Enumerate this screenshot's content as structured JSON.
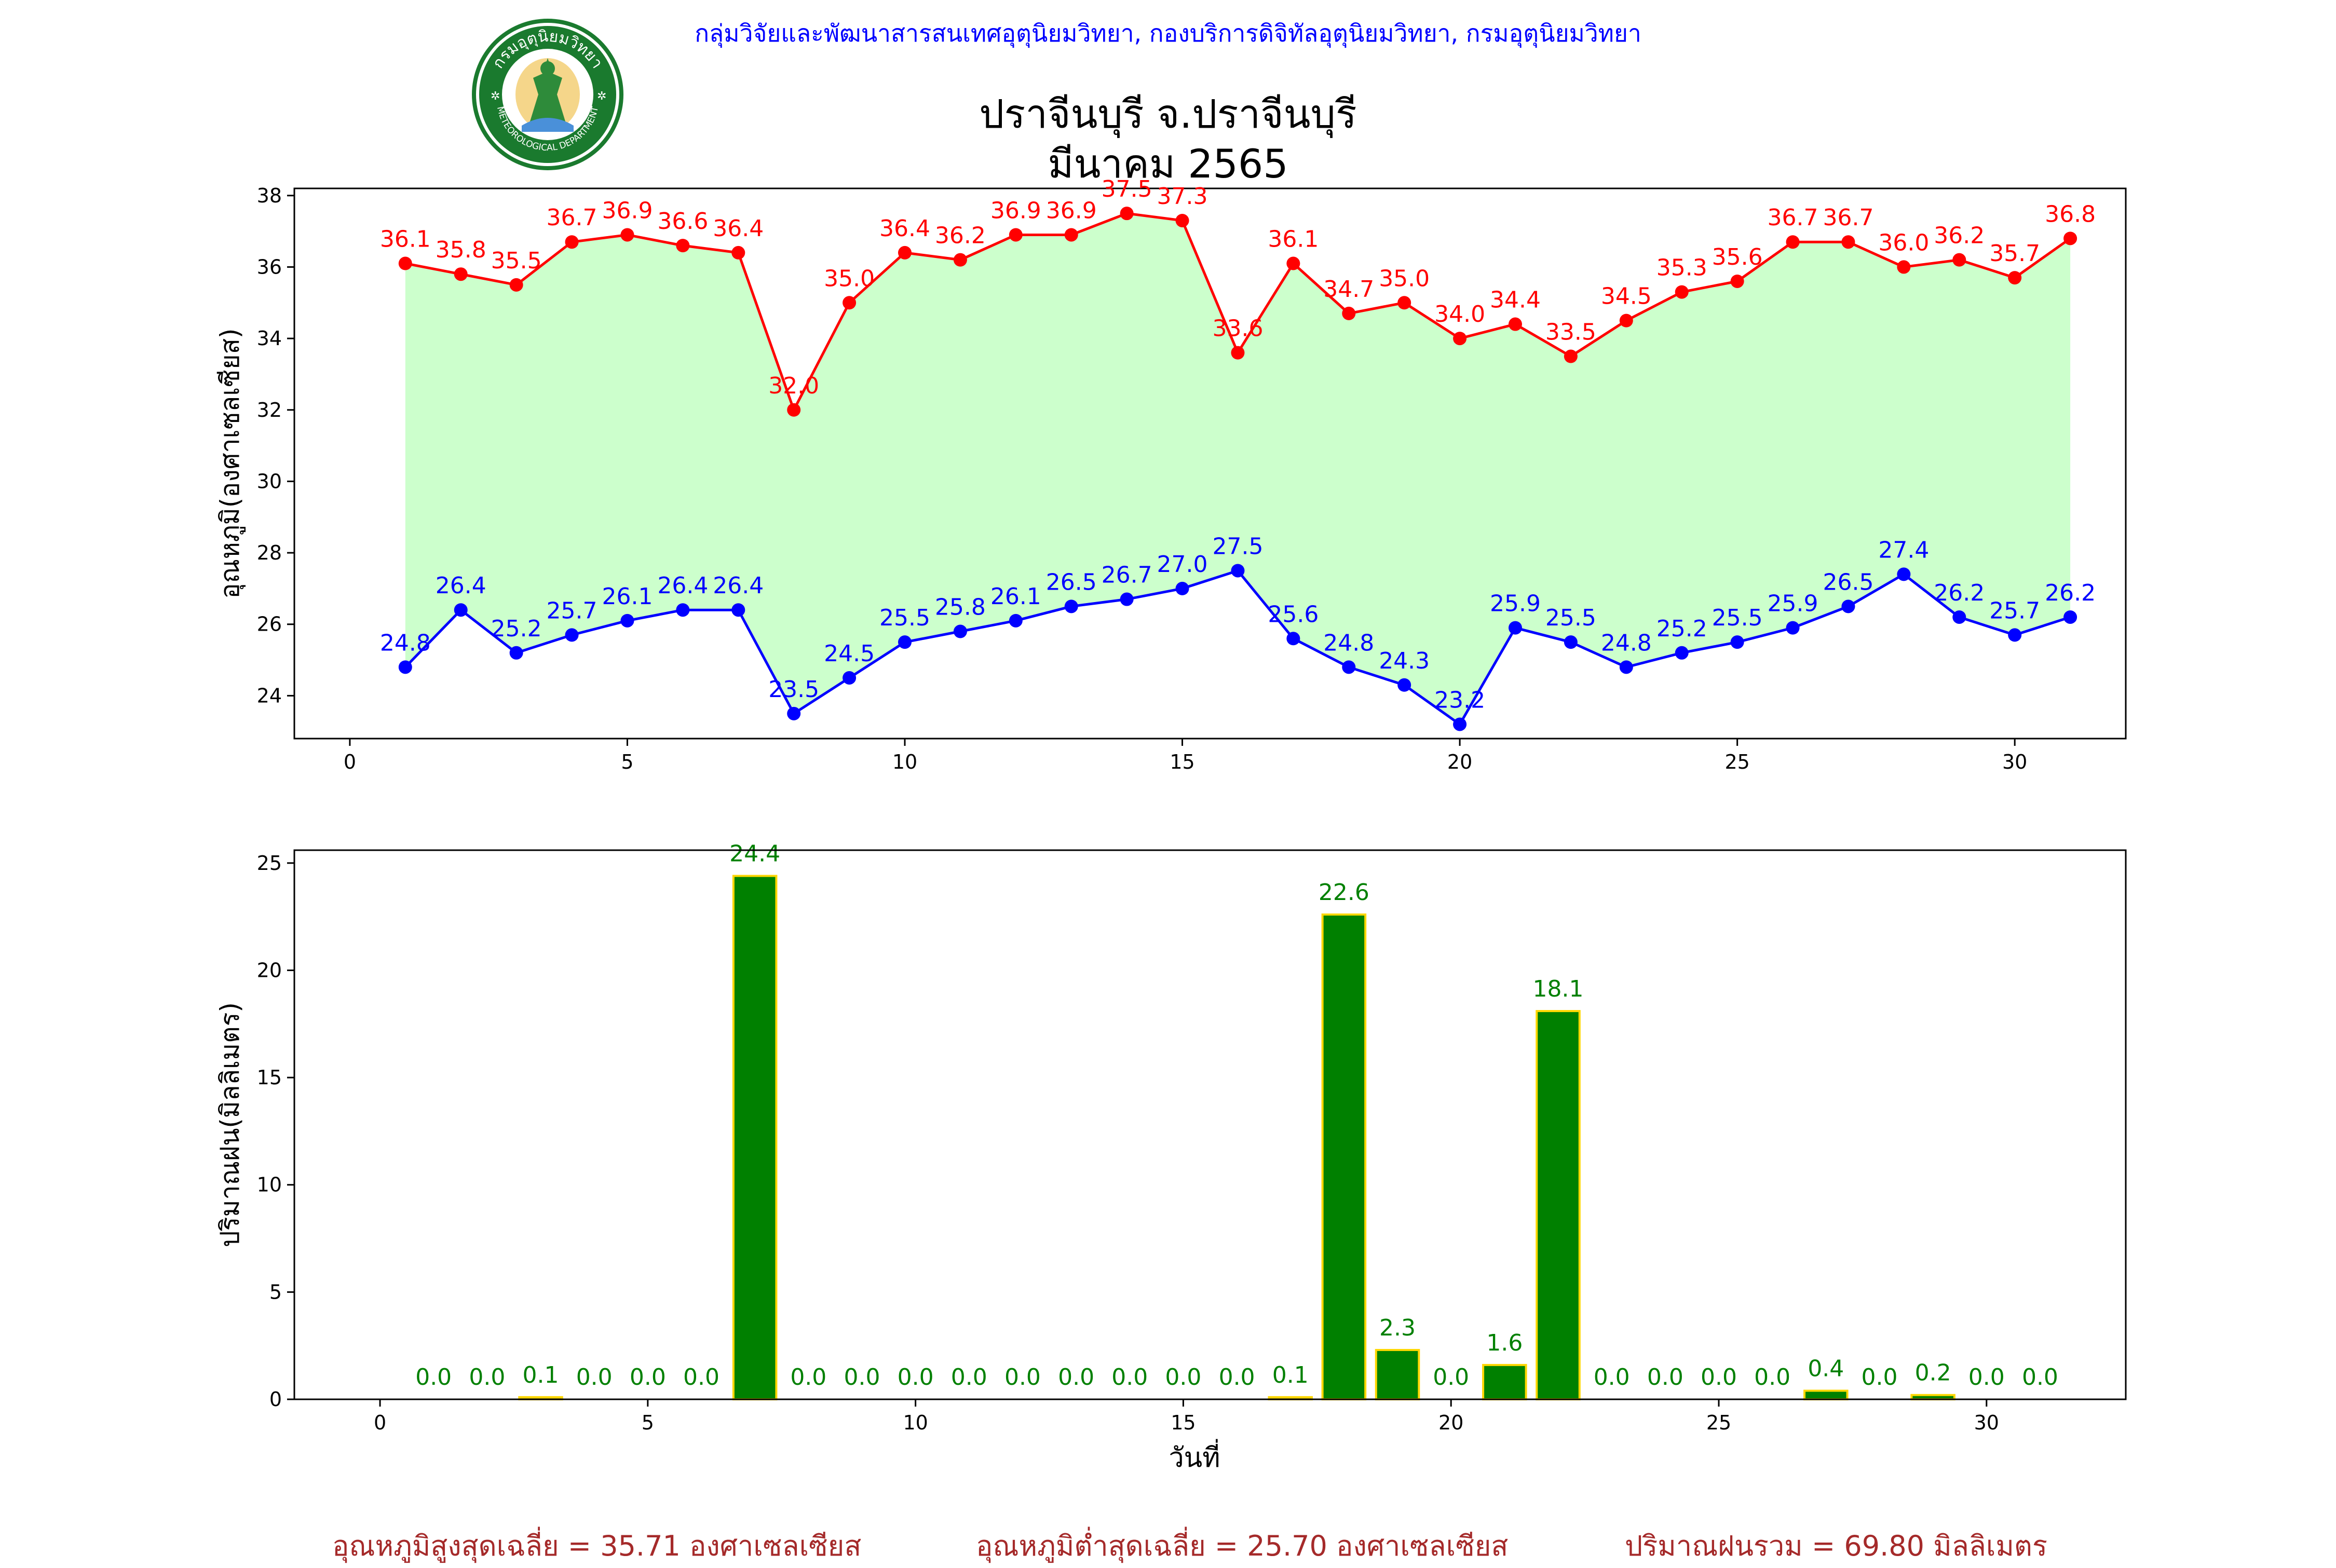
{
  "header": {
    "org": "กลุ่มวิจัยและพัฒนาสารสนเทศอุตุนิยมวิทยา, กองบริการดิจิทัลอุตุนิยมวิทยา, กรมอุตุนิยมวิทยา",
    "title_line1": "ปราจีนบุรี จ.ปราจีนบุรี",
    "title_line2": "มีนาคม 2565",
    "logo_top_text": "กรมอุตุนิยมวิทยา",
    "logo_bottom_text": "METEOROLOGICAL DEPARTMENT"
  },
  "summary": {
    "avg_max": "อุณหภูมิสูงสุดเฉลี่ย = 35.71 องศาเซลเซียส",
    "avg_min": "อุณหภูมิต่ำสุดเฉลี่ย = 25.70 องศาเซลเซียส",
    "total_rain": "ปริมาณฝนรวม = 69.80 มิลลิเมตร"
  },
  "colors": {
    "max_line": "#ff0000",
    "min_line": "#0000ff",
    "fill": "#ccffcc",
    "bar": "#008000",
    "bar_edge": "#ffd700",
    "org_text": "#0000ff",
    "summary_text": "#a52a2a"
  },
  "chart_data": [
    {
      "type": "line",
      "ylabel": "อุณหภูมิ(องศาเซลเซียส)",
      "xlim": [
        -1,
        32
      ],
      "ylim": [
        22.8,
        38.2
      ],
      "xticks": [
        0,
        5,
        10,
        15,
        20,
        25,
        30
      ],
      "yticks": [
        24,
        26,
        28,
        30,
        32,
        34,
        36,
        38
      ],
      "x": [
        1,
        2,
        3,
        4,
        5,
        6,
        7,
        8,
        9,
        10,
        11,
        12,
        13,
        14,
        15,
        16,
        17,
        18,
        19,
        20,
        21,
        22,
        23,
        24,
        25,
        26,
        27,
        28,
        29,
        30,
        31
      ],
      "series": [
        {
          "key": "max",
          "values": [
            36.1,
            35.8,
            35.5,
            36.7,
            36.9,
            36.6,
            36.4,
            32.0,
            35.0,
            36.4,
            36.2,
            36.9,
            36.9,
            37.5,
            37.3,
            33.6,
            36.1,
            34.7,
            35.0,
            34.0,
            34.4,
            33.5,
            34.5,
            35.3,
            35.6,
            36.7,
            36.7,
            36.0,
            36.2,
            35.7,
            36.8
          ]
        },
        {
          "key": "min",
          "values": [
            24.8,
            26.4,
            25.2,
            25.7,
            26.1,
            26.4,
            26.4,
            23.5,
            24.5,
            25.5,
            25.8,
            26.1,
            26.5,
            26.7,
            27.0,
            27.5,
            25.6,
            24.8,
            24.3,
            23.2,
            25.9,
            25.5,
            24.8,
            25.2,
            25.5,
            25.9,
            26.5,
            27.4,
            26.2,
            25.7,
            26.2
          ]
        }
      ]
    },
    {
      "type": "bar",
      "xlabel": "วันที่",
      "ylabel": "ปริมาณฝน(มิลลิเมตร)",
      "xlim": [
        -1.6,
        32.6
      ],
      "ylim": [
        0,
        25.6
      ],
      "xticks": [
        0,
        5,
        10,
        15,
        20,
        25,
        30
      ],
      "yticks": [
        0,
        5,
        10,
        15,
        20,
        25
      ],
      "x": [
        1,
        2,
        3,
        4,
        5,
        6,
        7,
        8,
        9,
        10,
        11,
        12,
        13,
        14,
        15,
        16,
        17,
        18,
        19,
        20,
        21,
        22,
        23,
        24,
        25,
        26,
        27,
        28,
        29,
        30,
        31
      ],
      "values": [
        0.0,
        0.0,
        0.1,
        0.0,
        0.0,
        0.0,
        24.4,
        0.0,
        0.0,
        0.0,
        0.0,
        0.0,
        0.0,
        0.0,
        0.0,
        0.0,
        0.1,
        22.6,
        2.3,
        0.0,
        1.6,
        18.1,
        0.0,
        0.0,
        0.0,
        0.0,
        0.4,
        0.0,
        0.2,
        0.0,
        0.0
      ]
    }
  ]
}
